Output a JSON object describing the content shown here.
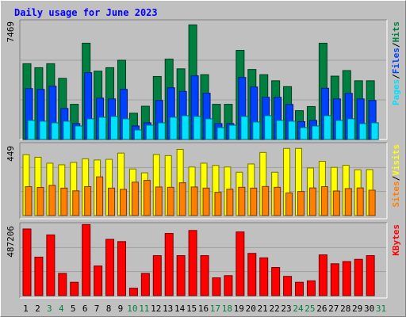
{
  "chart_data": {
    "type": "bar",
    "title": "Daily usage for June 2023",
    "x": [
      "1",
      "2",
      "3",
      "4",
      "5",
      "6",
      "7",
      "8",
      "9",
      "10",
      "11",
      "12",
      "13",
      "14",
      "15",
      "16",
      "17",
      "18",
      "19",
      "20",
      "21",
      "22",
      "23",
      "24",
      "25",
      "26",
      "27",
      "28",
      "29",
      "30",
      "31"
    ],
    "weekend_days": [
      "3",
      "4",
      "10",
      "11",
      "17",
      "18",
      "24",
      "25",
      "31"
    ],
    "panels": [
      {
        "id": "hits",
        "max_label": "7469",
        "max": 7469,
        "labels": [
          "Pages",
          "Files",
          "Hits"
        ],
        "series": [
          {
            "name": "Hits",
            "color": "#008040",
            "values": [
              4760,
              4510,
              4760,
              3840,
              2210,
              6050,
              4290,
              4510,
              4980,
              1650,
              2090,
              3960,
              5050,
              4440,
              7200,
              4070,
              2210,
              2210,
              5600,
              4400,
              4070,
              3690,
              3320,
              1810,
              2070,
              6050,
              3980,
              4330,
              3690,
              3690,
              0
            ]
          },
          {
            "name": "Files",
            "color": "#0040ff",
            "values": [
              3200,
              3150,
              3350,
              1950,
              1000,
              4200,
              2600,
              2550,
              3150,
              850,
              1050,
              2450,
              3250,
              3020,
              4000,
              2910,
              1000,
              1000,
              3900,
              3300,
              2650,
              2650,
              2200,
              1120,
              1200,
              3220,
              2550,
              2900,
              2550,
              2450,
              0
            ]
          },
          {
            "name": "Pages",
            "color": "#00e0ff",
            "values": [
              1200,
              1150,
              1050,
              1150,
              850,
              1300,
              1400,
              1450,
              1300,
              600,
              900,
              1050,
              1400,
              1500,
              1450,
              1300,
              750,
              900,
              1450,
              1100,
              1500,
              1200,
              1150,
              750,
              850,
              1500,
              1200,
              1300,
              1000,
              1050,
              0
            ]
          }
        ]
      },
      {
        "id": "visits",
        "max_label": "449",
        "max": 449,
        "labels": [
          "Sites",
          "Visits"
        ],
        "series": [
          {
            "name": "Visits",
            "color": "#ffff00",
            "values": [
              379,
              363,
              326,
              316,
              331,
              353,
              346,
              350,
              389,
              290,
              266,
              380,
              373,
              412,
              302,
              326,
              312,
              302,
              270,
              321,
              393,
              270,
              418,
              418,
              296,
              338,
              300,
              313,
              285,
              286,
              0
            ]
          },
          {
            "name": "Sites",
            "color": "#ff8000",
            "values": [
              180,
              175,
              188,
              171,
              154,
              180,
              241,
              171,
              163,
              208,
              219,
              178,
              176,
              204,
              178,
              171,
              145,
              164,
              176,
              171,
              181,
              176,
              141,
              150,
              172,
              180,
              153,
              168,
              172,
              158,
              0
            ]
          }
        ]
      },
      {
        "id": "kbytes",
        "max_label": "487206",
        "max": 487206,
        "labels": [
          "KBytes"
        ],
        "series": [
          {
            "name": "KBytes",
            "color": "#ff0000",
            "values": [
              450000,
              260000,
              410000,
              150000,
              90000,
              480000,
              200000,
              380000,
              365000,
              50000,
              150000,
              270000,
              420000,
              270000,
              440000,
              270000,
              120000,
              135000,
              430000,
              285000,
              255000,
              190000,
              130000,
              90000,
              100000,
              275000,
              215000,
              230000,
              245000,
              270000,
              0
            ]
          }
        ]
      }
    ]
  }
}
